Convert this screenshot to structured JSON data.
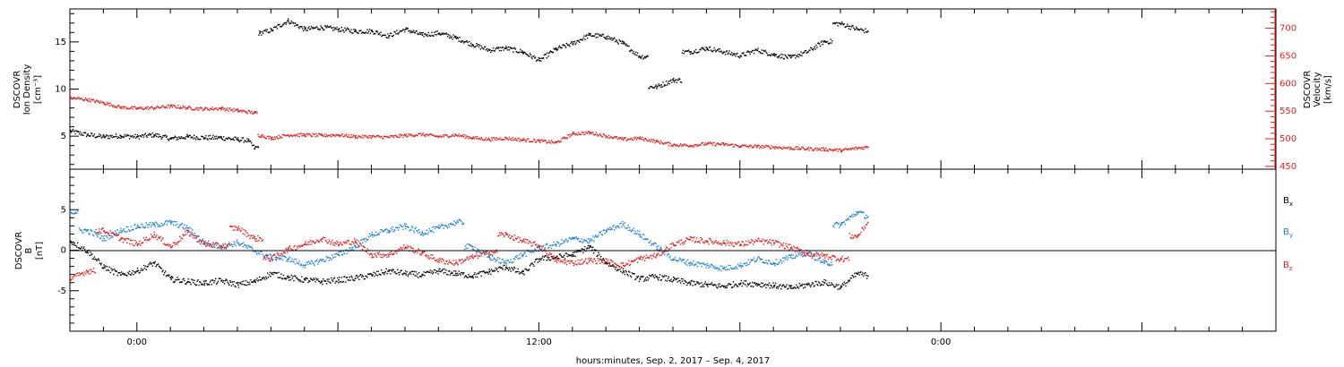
{
  "chart_data": [
    {
      "type": "scatter",
      "panel": "plasma",
      "ylabel_left": [
        "DSCOVR",
        "Ion Density",
        "[cm⁻³]"
      ],
      "ylabel_right": [
        "DSCOVR",
        "Velocity",
        "[km/s]"
      ],
      "ylim_left": [
        1.5,
        18.5
      ],
      "ylim_right": [
        445,
        735
      ],
      "yticks_left": [
        "5",
        "10",
        "15"
      ],
      "yticks_right": [
        "450",
        "500",
        "550",
        "600",
        "650",
        "700"
      ],
      "grid": false,
      "series": [
        {
          "name": "Ion Density",
          "axis": "left",
          "color": "#000000",
          "points": [
            [
              -2.0,
              5.6
            ],
            [
              -1.5,
              5.2
            ],
            [
              -1.0,
              5.0
            ],
            [
              -0.5,
              5.1
            ],
            [
              0.0,
              5.0
            ],
            [
              0.5,
              5.2
            ],
            [
              1.0,
              4.8
            ],
            [
              1.5,
              5.0
            ],
            [
              2.0,
              4.9
            ],
            [
              2.5,
              4.9
            ],
            [
              3.0,
              4.7
            ],
            [
              3.3,
              4.6
            ],
            [
              3.5,
              3.8
            ],
            [
              3.6,
              3.9
            ],
            [
              3.65,
              16.0
            ],
            [
              4.0,
              16.3
            ],
            [
              4.5,
              17.3
            ],
            [
              5.0,
              16.4
            ],
            [
              5.5,
              16.6
            ],
            [
              6.0,
              16.4
            ],
            [
              6.5,
              16.2
            ],
            [
              7.0,
              16.2
            ],
            [
              7.5,
              15.7
            ],
            [
              8.0,
              16.4
            ],
            [
              8.5,
              15.8
            ],
            [
              9.0,
              16.0
            ],
            [
              9.5,
              15.5
            ],
            [
              10.0,
              14.8
            ],
            [
              10.5,
              14.2
            ],
            [
              11.0,
              14.4
            ],
            [
              11.5,
              14.0
            ],
            [
              12.0,
              13.1
            ],
            [
              12.5,
              14.3
            ],
            [
              13.0,
              14.9
            ],
            [
              13.5,
              15.8
            ],
            [
              14.0,
              15.6
            ],
            [
              14.5,
              14.9
            ],
            [
              15.0,
              13.5
            ],
            [
              15.5,
              10.3
            ],
            [
              16.0,
              11.0
            ],
            [
              16.5,
              14.0
            ],
            [
              17.0,
              14.4
            ],
            [
              17.5,
              14.0
            ],
            [
              18.0,
              13.6
            ],
            [
              18.5,
              14.2
            ],
            [
              19.0,
              13.7
            ],
            [
              19.5,
              13.4
            ],
            [
              20.0,
              14.0
            ],
            [
              20.5,
              15.1
            ],
            [
              21.0,
              17.0
            ],
            [
              21.5,
              16.4
            ],
            [
              21.8,
              16.2
            ]
          ]
        },
        {
          "name": "Velocity",
          "axis": "right",
          "color": "#e0201c",
          "points": [
            [
              -2.0,
              575
            ],
            [
              -1.5,
              572
            ],
            [
              -1.0,
              566
            ],
            [
              -0.5,
              558
            ],
            [
              0.0,
              556
            ],
            [
              0.5,
              557
            ],
            [
              1.0,
              560
            ],
            [
              1.5,
              557
            ],
            [
              2.0,
              555
            ],
            [
              2.5,
              556
            ],
            [
              3.0,
              552
            ],
            [
              3.5,
              548
            ],
            [
              3.7,
              507
            ],
            [
              4.0,
              502
            ],
            [
              4.5,
              508
            ],
            [
              5.0,
              508
            ],
            [
              5.5,
              507
            ],
            [
              6.0,
              508
            ],
            [
              6.5,
              505
            ],
            [
              7.0,
              505
            ],
            [
              7.5,
              504
            ],
            [
              8.0,
              507
            ],
            [
              8.5,
              509
            ],
            [
              9.0,
              505
            ],
            [
              9.5,
              508
            ],
            [
              10.0,
              503
            ],
            [
              10.5,
              500
            ],
            [
              11.0,
              502
            ],
            [
              11.5,
              499
            ],
            [
              12.0,
              497
            ],
            [
              12.5,
              494
            ],
            [
              13.0,
              510
            ],
            [
              13.5,
              512
            ],
            [
              14.0,
              506
            ],
            [
              14.5,
              500
            ],
            [
              15.0,
              502
            ],
            [
              15.5,
              496
            ],
            [
              16.0,
              490
            ],
            [
              16.5,
              489
            ],
            [
              17.0,
              492
            ],
            [
              17.5,
              491
            ],
            [
              18.0,
              488
            ],
            [
              18.5,
              487
            ],
            [
              19.0,
              486
            ],
            [
              19.5,
              484
            ],
            [
              20.0,
              483
            ],
            [
              20.5,
              482
            ],
            [
              21.0,
              480
            ],
            [
              21.5,
              484
            ],
            [
              21.8,
              486
            ]
          ]
        }
      ]
    },
    {
      "type": "scatter",
      "panel": "magnetic",
      "ylabel_left": [
        "DSCOVR",
        "B",
        "[nT]"
      ],
      "ylim": [
        -10,
        10
      ],
      "yticks": [
        "-5",
        "0",
        "5"
      ],
      "zero_line": true,
      "grid": false,
      "legend": {
        "position": "right",
        "entries": [
          {
            "text": "B",
            "sub": "x",
            "color": "#000000"
          },
          {
            "text": "B",
            "sub": "y",
            "color": "#1e7fd6"
          },
          {
            "text": "B",
            "sub": "z",
            "color": "#e0201c"
          }
        ]
      },
      "series": [
        {
          "name": "Bx",
          "color": "#000000",
          "points": [
            [
              -2.0,
              1.2
            ],
            [
              -1.5,
              0.0
            ],
            [
              -1.0,
              -2.0
            ],
            [
              -0.5,
              -3.0
            ],
            [
              0.0,
              -2.5
            ],
            [
              0.5,
              -1.5
            ],
            [
              1.0,
              -3.5
            ],
            [
              1.5,
              -3.8
            ],
            [
              2.0,
              -4.0
            ],
            [
              2.5,
              -3.7
            ],
            [
              3.0,
              -4.2
            ],
            [
              3.5,
              -3.8
            ],
            [
              4.0,
              -2.8
            ],
            [
              4.5,
              -3.3
            ],
            [
              5.0,
              -3.6
            ],
            [
              5.5,
              -3.8
            ],
            [
              6.0,
              -3.6
            ],
            [
              6.5,
              -3.4
            ],
            [
              7.0,
              -3.0
            ],
            [
              7.5,
              -2.5
            ],
            [
              8.0,
              -2.8
            ],
            [
              8.5,
              -3.0
            ],
            [
              9.0,
              -2.5
            ],
            [
              9.5,
              -2.8
            ],
            [
              10.0,
              -3.1
            ],
            [
              10.5,
              -2.6
            ],
            [
              11.0,
              -2.0
            ],
            [
              11.5,
              -2.8
            ],
            [
              12.0,
              -1.0
            ],
            [
              12.5,
              -0.8
            ],
            [
              13.0,
              -0.5
            ],
            [
              13.5,
              0.5
            ],
            [
              14.0,
              -1.5
            ],
            [
              14.5,
              -2.5
            ],
            [
              15.0,
              -3.5
            ],
            [
              15.5,
              -3.2
            ],
            [
              16.0,
              -3.6
            ],
            [
              16.5,
              -4.0
            ],
            [
              17.0,
              -4.2
            ],
            [
              17.5,
              -4.4
            ],
            [
              18.0,
              -4.0
            ],
            [
              18.5,
              -4.1
            ],
            [
              19.0,
              -4.3
            ],
            [
              19.5,
              -4.6
            ],
            [
              20.0,
              -4.2
            ],
            [
              20.5,
              -3.9
            ],
            [
              21.0,
              -4.5
            ],
            [
              21.5,
              -2.8
            ],
            [
              21.8,
              -3.1
            ]
          ]
        },
        {
          "name": "By",
          "color": "#1e7fd6",
          "points": [
            [
              -2.0,
              4.8
            ],
            [
              -1.5,
              2.5
            ],
            [
              -1.0,
              1.5
            ],
            [
              -0.5,
              2.5
            ],
            [
              0.0,
              3.0
            ],
            [
              0.5,
              3.2
            ],
            [
              1.0,
              3.5
            ],
            [
              1.5,
              2.8
            ],
            [
              2.0,
              1.0
            ],
            [
              2.5,
              0.5
            ],
            [
              3.0,
              1.0
            ],
            [
              3.5,
              0.0
            ],
            [
              4.0,
              -0.8
            ],
            [
              4.5,
              -1.0
            ],
            [
              5.0,
              -1.8
            ],
            [
              5.5,
              -1.2
            ],
            [
              6.0,
              -0.5
            ],
            [
              6.5,
              0.5
            ],
            [
              7.0,
              2.0
            ],
            [
              7.5,
              2.5
            ],
            [
              8.0,
              3.0
            ],
            [
              8.5,
              2.2
            ],
            [
              9.0,
              2.8
            ],
            [
              9.5,
              3.5
            ],
            [
              10.0,
              0.5
            ],
            [
              10.5,
              -0.8
            ],
            [
              11.0,
              -1.5
            ],
            [
              11.5,
              -0.5
            ],
            [
              12.0,
              0.3
            ],
            [
              12.5,
              0.8
            ],
            [
              13.0,
              1.5
            ],
            [
              13.5,
              1.2
            ],
            [
              14.0,
              2.5
            ],
            [
              14.5,
              3.3
            ],
            [
              15.0,
              2.0
            ],
            [
              15.5,
              0.5
            ],
            [
              16.0,
              -1.0
            ],
            [
              16.5,
              -1.5
            ],
            [
              17.0,
              -1.8
            ],
            [
              17.5,
              -2.2
            ],
            [
              18.0,
              -1.8
            ],
            [
              18.5,
              -1.0
            ],
            [
              19.0,
              -1.5
            ],
            [
              19.5,
              -0.8
            ],
            [
              20.0,
              -0.2
            ],
            [
              20.5,
              -1.5
            ],
            [
              21.0,
              3.2
            ],
            [
              21.5,
              4.8
            ],
            [
              21.8,
              4.2
            ]
          ]
        },
        {
          "name": "Bz",
          "color": "#e0201c",
          "points": [
            [
              -2.0,
              -3.5
            ],
            [
              -1.5,
              -2.5
            ],
            [
              -1.0,
              2.5
            ],
            [
              -0.5,
              1.5
            ],
            [
              0.0,
              0.8
            ],
            [
              0.5,
              2.0
            ],
            [
              1.0,
              0.5
            ],
            [
              1.5,
              2.3
            ],
            [
              2.0,
              0.8
            ],
            [
              2.5,
              0.6
            ],
            [
              3.0,
              2.8
            ],
            [
              3.5,
              1.5
            ],
            [
              4.0,
              -1.0
            ],
            [
              4.5,
              0.2
            ],
            [
              5.0,
              0.8
            ],
            [
              5.5,
              1.5
            ],
            [
              6.0,
              0.8
            ],
            [
              6.5,
              1.2
            ],
            [
              7.0,
              -0.5
            ],
            [
              7.5,
              -0.5
            ],
            [
              8.0,
              0.5
            ],
            [
              8.5,
              -0.3
            ],
            [
              9.0,
              -1.2
            ],
            [
              9.5,
              -1.5
            ],
            [
              10.0,
              -0.8
            ],
            [
              10.5,
              -0.2
            ],
            [
              11.0,
              2.0
            ],
            [
              11.5,
              1.2
            ],
            [
              12.0,
              0.6
            ],
            [
              12.5,
              -1.2
            ],
            [
              13.0,
              -1.5
            ],
            [
              13.5,
              -1.2
            ],
            [
              14.0,
              -1.3
            ],
            [
              14.5,
              -1.8
            ],
            [
              15.0,
              -1.0
            ],
            [
              15.5,
              -0.6
            ],
            [
              16.0,
              0.8
            ],
            [
              16.5,
              1.4
            ],
            [
              17.0,
              1.2
            ],
            [
              17.5,
              1.0
            ],
            [
              18.0,
              0.8
            ],
            [
              18.5,
              1.2
            ],
            [
              19.0,
              1.0
            ],
            [
              19.5,
              0.4
            ],
            [
              20.0,
              -0.4
            ],
            [
              20.5,
              -0.6
            ],
            [
              21.0,
              -1.0
            ],
            [
              21.5,
              1.8
            ],
            [
              21.8,
              3.5
            ]
          ]
        }
      ]
    }
  ],
  "x_axis": {
    "range_hours": [
      -2.0,
      34.0
    ],
    "tick_labels": [
      {
        "hour": 0,
        "label": "0:00"
      },
      {
        "hour": 12,
        "label": "12:00"
      },
      {
        "hour": 24,
        "label": "0:00"
      }
    ],
    "xlabel": "hours:minutes, Sep.  2, 2017 – Sep.  4, 2017"
  }
}
